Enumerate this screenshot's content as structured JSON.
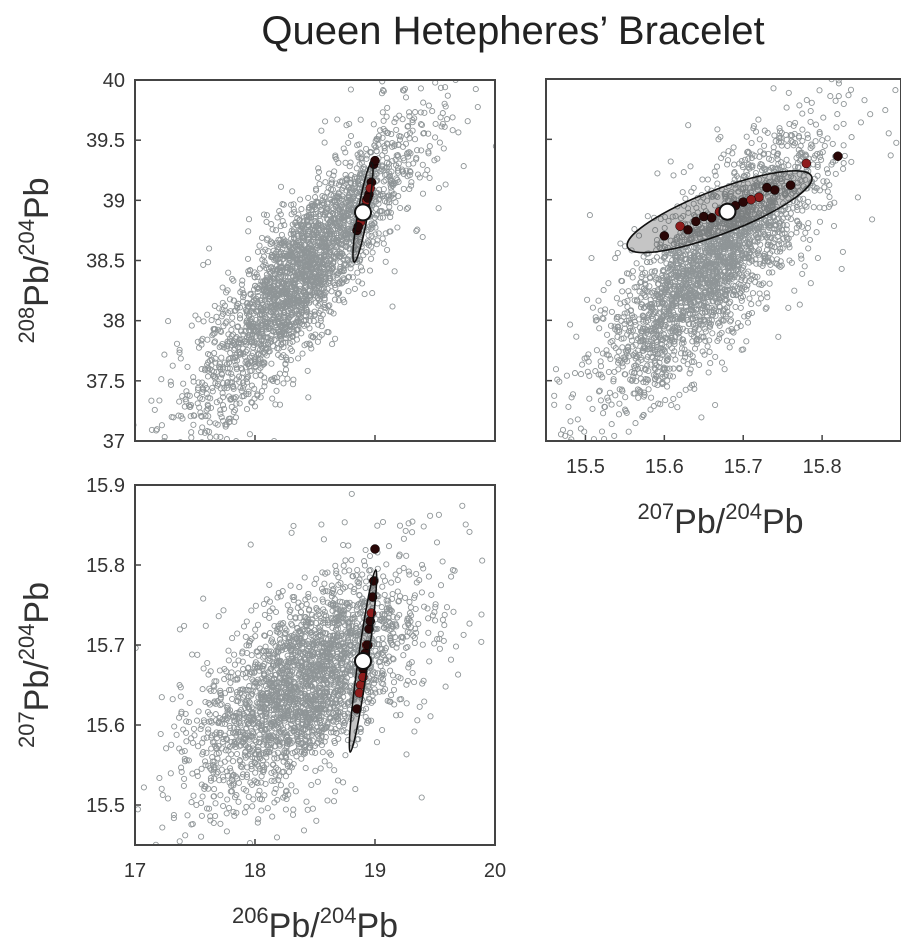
{
  "title": "Queen Hetepheres’ Bracelet",
  "colors": {
    "background_points": "#8f9597",
    "sample_dark": "#2a0707",
    "sample_red": "#8e1c1c",
    "ellipse": "#111111",
    "mean_marker": "#ffffff",
    "axes": "#444444"
  },
  "chart_data": [
    {
      "id": "top-left",
      "type": "scatter",
      "xlim": [
        17,
        20
      ],
      "ylim": [
        37,
        40
      ],
      "x_ticks": [],
      "y_ticks": [
        "37",
        "37.5",
        "38",
        "38.5",
        "39",
        "39.5",
        "40"
      ],
      "xlabel": "",
      "ylabel": {
        "sup1": "208",
        "base1": "Pb/",
        "sup2": "204",
        "base2": "Pb"
      },
      "cloud": {
        "cx": 18.4,
        "cy": 38.4,
        "sx": 0.42,
        "sy": 0.55,
        "r": 0.86,
        "n": 2600
      },
      "samples": {
        "x": [
          18.85,
          18.9,
          18.92,
          18.95,
          18.88,
          18.97,
          18.99,
          18.93,
          18.91,
          18.86,
          18.96,
          19.0,
          18.94,
          18.89
        ],
        "y": [
          38.75,
          38.9,
          38.95,
          39.05,
          38.82,
          39.15,
          39.3,
          39.0,
          38.92,
          38.78,
          39.1,
          39.33,
          39.02,
          38.88
        ]
      },
      "mean": [
        18.9,
        38.9
      ],
      "ellipse": {
        "cx": 18.9,
        "cy": 38.9,
        "a": 0.42,
        "b": 0.015,
        "angle_deg": 80
      }
    },
    {
      "id": "top-right",
      "type": "scatter",
      "xlim": [
        15.45,
        15.9
      ],
      "ylim": [
        37,
        40
      ],
      "x_ticks": [
        "15.5",
        "15.6",
        "15.7",
        "15.8"
      ],
      "y_ticks": [],
      "xlabel": {
        "sup1": "207",
        "base1": "Pb/",
        "sup2": "204",
        "base2": "Pb"
      },
      "ylabel": "",
      "cloud": {
        "cx": 15.66,
        "cy": 38.45,
        "sx": 0.065,
        "sy": 0.5,
        "r": 0.8,
        "n": 2600
      },
      "samples": {
        "x": [
          15.6,
          15.62,
          15.64,
          15.65,
          15.67,
          15.69,
          15.7,
          15.72,
          15.74,
          15.76,
          15.78,
          15.63,
          15.66,
          15.71,
          15.73,
          15.82
        ],
        "y": [
          38.7,
          38.78,
          38.82,
          38.86,
          38.9,
          38.95,
          38.98,
          39.02,
          39.08,
          39.12,
          39.3,
          38.75,
          38.85,
          39.0,
          39.1,
          39.36
        ]
      },
      "mean": [
        15.68,
        38.9
      ],
      "ellipse": {
        "cx": 15.67,
        "cy": 38.9,
        "a": 0.125,
        "b": 0.2,
        "angle_deg": 0
      }
    },
    {
      "id": "bottom-left",
      "type": "scatter",
      "xlim": [
        17,
        20
      ],
      "ylim": [
        15.45,
        15.9
      ],
      "x_ticks": [
        "17",
        "18",
        "19",
        "20"
      ],
      "y_ticks": [
        "15.5",
        "15.6",
        "15.7",
        "15.8",
        "15.9"
      ],
      "xlabel": {
        "sup1": "206",
        "base1": "Pb/",
        "sup2": "204",
        "base2": "Pb"
      },
      "ylabel": {
        "sup1": "207",
        "base1": "Pb/",
        "sup2": "204",
        "base2": "Pb"
      },
      "cloud": {
        "cx": 18.4,
        "cy": 15.65,
        "sx": 0.42,
        "sy": 0.065,
        "r": 0.6,
        "n": 2600
      },
      "samples": {
        "x": [
          18.85,
          18.88,
          18.9,
          18.92,
          18.93,
          18.95,
          18.96,
          18.97,
          18.98,
          18.99,
          18.9,
          18.94,
          19.0,
          18.87
        ],
        "y": [
          15.62,
          15.65,
          15.67,
          15.69,
          15.7,
          15.72,
          15.73,
          15.74,
          15.76,
          15.78,
          15.66,
          15.7,
          15.82,
          15.64
        ]
      },
      "mean": [
        18.9,
        15.68
      ],
      "ellipse": {
        "cx": 18.9,
        "cy": 15.68,
        "a": 0.115,
        "b": 0.012,
        "angle_deg": 82
      }
    }
  ]
}
